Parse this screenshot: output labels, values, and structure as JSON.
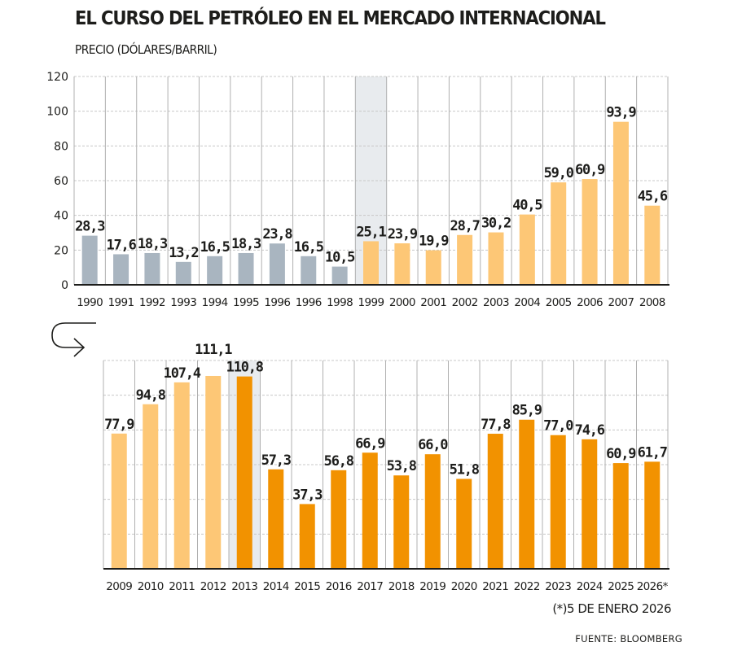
{
  "header": {
    "title": "EL CURSO DEL PETRÓLEO EN EL MERCADO INTERNACIONAL",
    "subtitle": "PRECIO (DÓLARES/BARRIL)"
  },
  "footer": {
    "footnote": "(*)5 DE ENERO 2026",
    "source": "FUENTE: BLOOMBERG"
  },
  "icons": {
    "continuation": "curved-arrow-right-icon"
  },
  "colors": {
    "gray": "#a9b5c0",
    "light_orange": "#fdc776",
    "dark_orange": "#f29200",
    "highlight_column": "#e8ebee",
    "text": "#1d1d1b",
    "grid": "#c8c8c8",
    "divider": "#b0b0b0",
    "axis": "#1d1d1b"
  },
  "chart_data": [
    {
      "type": "bar",
      "title": "EL CURSO DEL PETRÓLEO EN EL MERCADO INTERNACIONAL",
      "ylabel": "PRECIO (DÓLARES/BARRIL)",
      "xlabel": "",
      "ylim": [
        0,
        120
      ],
      "yticks": [
        0,
        20,
        40,
        60,
        80,
        100,
        120
      ],
      "grid": true,
      "highlighted_category": "1999",
      "categories": [
        "1990",
        "1991",
        "1992",
        "1993",
        "1994",
        "1995",
        "1996",
        "1996",
        "1998",
        "1999",
        "2000",
        "2001",
        "2002",
        "2003",
        "2004",
        "2005",
        "2006",
        "2007",
        "2008"
      ],
      "values": [
        28.3,
        17.6,
        18.3,
        13.2,
        16.5,
        18.3,
        23.8,
        16.5,
        10.5,
        25.1,
        23.9,
        19.9,
        28.7,
        30.2,
        40.5,
        59.0,
        60.9,
        93.9,
        45.6
      ],
      "labels": [
        "28,3",
        "17,6",
        "18,3",
        "13,2",
        "16,5",
        "18,3",
        "23,8",
        "16,5",
        "10,5",
        "25,1",
        "23,9",
        "19,9",
        "28,7",
        "30,2",
        "40,5",
        "59,0",
        "60,9",
        "93,9",
        "45,6"
      ],
      "bar_colors": [
        "gray",
        "gray",
        "gray",
        "gray",
        "gray",
        "gray",
        "gray",
        "gray",
        "gray",
        "light_orange",
        "light_orange",
        "light_orange",
        "light_orange",
        "light_orange",
        "light_orange",
        "light_orange",
        "light_orange",
        "light_orange",
        "light_orange"
      ]
    },
    {
      "type": "bar",
      "title": "",
      "ylabel": "",
      "xlabel": "",
      "ylim": [
        0,
        120
      ],
      "yticks": [
        0,
        20,
        40,
        60,
        80,
        100,
        120
      ],
      "show_ytick_labels": false,
      "grid": true,
      "highlighted_category": "2013",
      "categories": [
        "2009",
        "2010",
        "2011",
        "2012",
        "2013",
        "2014",
        "2015",
        "2016",
        "2017",
        "2018",
        "2019",
        "2020",
        "2021",
        "2022",
        "2023",
        "2024",
        "2025",
        "2026*"
      ],
      "values": [
        77.9,
        94.8,
        107.4,
        111.1,
        110.8,
        57.3,
        37.3,
        56.8,
        66.9,
        53.8,
        66.0,
        51.8,
        77.8,
        85.9,
        77.0,
        74.6,
        60.9,
        61.7
      ],
      "labels": [
        "77,9",
        "94,8",
        "107,4",
        "111,1",
        "110,8",
        "57,3",
        "37,3",
        "56,8",
        "66,9",
        "53,8",
        "66,0",
        "51,8",
        "77,8",
        "85,9",
        "77,0",
        "74,6",
        "60,9",
        "61,7"
      ],
      "bar_colors": [
        "light_orange",
        "light_orange",
        "light_orange",
        "light_orange",
        "dark_orange",
        "dark_orange",
        "dark_orange",
        "dark_orange",
        "dark_orange",
        "dark_orange",
        "dark_orange",
        "dark_orange",
        "dark_orange",
        "dark_orange",
        "dark_orange",
        "dark_orange",
        "dark_orange",
        "dark_orange"
      ]
    }
  ]
}
